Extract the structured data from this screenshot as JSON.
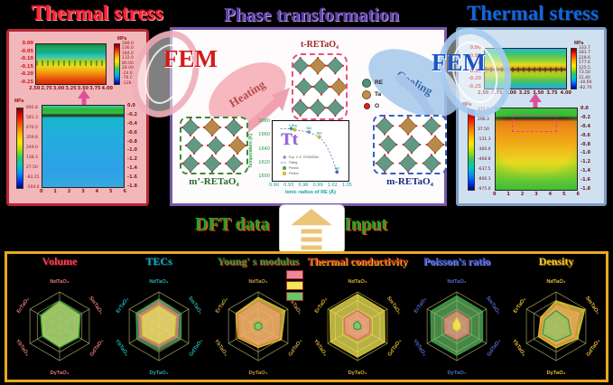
{
  "left_panel": {
    "title": "Thermal stress",
    "accent": "#e02030"
  },
  "right_panel": {
    "title": "Thermal stress",
    "accent": "#1565d8"
  },
  "center_panel": {
    "title": "Phase transformation",
    "fem_left": "FEM",
    "fem_right": "FEM",
    "heating": "Heating",
    "cooling": "Cooling",
    "t_label": "t-RETaO₄",
    "m_prime_label": "m’-RETaO₄",
    "m_label": "m-RETaO₄",
    "legend": [
      {
        "label": "RE",
        "color": "#4e8f7e"
      },
      {
        "label": "Ta",
        "color": "#c09040"
      },
      {
        "label": "O",
        "color": "#e02020"
      }
    ]
  },
  "middle": {
    "dft_label": "DFT data",
    "input_label": "Input"
  },
  "radar_axis_labels": [
    "NdTaO₄",
    "SmTaO₄",
    "GdTaO₄",
    "DyTaO₄",
    "YbTaO₄",
    "ErTaO₄"
  ],
  "chart_data": [
    {
      "name": "stress-contour-top-left",
      "type": "heatmap",
      "xticks": [
        "2.50",
        "2.75",
        "3.00",
        "3.25",
        "3.50",
        "3.75",
        "4.00"
      ],
      "yticks": [
        "0.00",
        "-0.05",
        "-0.10",
        "-0.15",
        "-0.20",
        "-0.25"
      ],
      "colorbar_unit": "MPa",
      "colorbar_ticks": [
        "288.0",
        "236.0",
        "184.0",
        "132.0",
        "80.00",
        "28.00",
        "-24.00",
        "-76.00",
        "-128.0"
      ]
    },
    {
      "name": "stress-contour-bottom-left",
      "type": "heatmap",
      "xticks": [
        "0",
        "1",
        "2",
        "3",
        "4",
        "5",
        "6"
      ],
      "yticks_right": [
        "0.0",
        "-0.2",
        "-0.4",
        "-0.6",
        "-0.8",
        "-1.0",
        "-1.2",
        "-1.4",
        "-1.6",
        "-1.8"
      ],
      "colorbar_unit": "MPa",
      "colorbar_ticks": [
        "692.8",
        "581.3",
        "470.5",
        "359.8",
        "249.0",
        "138.3",
        "27.50",
        "-83.25",
        "-194.0"
      ]
    },
    {
      "name": "stress-contour-top-right",
      "type": "heatmap",
      "xticks": [
        "2.50",
        "2.75",
        "3.00",
        "3.25",
        "3.50",
        "3.75",
        "4.00"
      ],
      "yticks": [
        "0.00",
        "-0.05",
        "-0.10",
        "-0.15",
        "-0.20",
        "-0.25"
      ],
      "colorbar_unit": "MPa",
      "colorbar_ticks": [
        "333.7",
        "281.7",
        "229.6",
        "177.6",
        "125.5",
        "73.50",
        "21.40",
        "-30.60",
        "-82.70"
      ]
    },
    {
      "name": "stress-contour-bottom-right",
      "type": "heatmap",
      "xticks": [
        "0",
        "1",
        "2",
        "3",
        "4",
        "5",
        "6"
      ],
      "yticks_right": [
        "0.0",
        "-0.2",
        "-0.4",
        "-0.6",
        "-0.8",
        "-1.0",
        "-1.2",
        "-1.4",
        "-1.6",
        "-1.8"
      ],
      "colorbar_unit": "MPa",
      "colorbar_ticks": [
        "375.0",
        "206.3",
        "37.50",
        "-131.3",
        "-300.0",
        "-468.8",
        "-637.5",
        "-806.3",
        "-975.0"
      ]
    },
    {
      "name": "tt-scatter",
      "type": "scatter",
      "title": "Tt",
      "ylabel": "Temperature (K)",
      "xlabel": "Ionic radius of RE (Å)",
      "yticks": [
        "1680",
        "1660",
        "1640",
        "1620",
        "1600"
      ],
      "xticks": [
        "0.90",
        "0.93",
        "0.96",
        "0.99",
        "1.02",
        "1.05"
      ],
      "xlim": [
        0.88,
        1.07
      ],
      "ylim": [
        1595,
        1685
      ],
      "points": [
        {
          "label": "Lu",
          "x": 0.92,
          "y": 1678
        },
        {
          "label": "Yb",
          "x": 0.93,
          "y": 1676
        },
        {
          "label": "Gd",
          "x": 0.97,
          "y": 1672
        },
        {
          "label": "Sm",
          "x": 1.0,
          "y": 1663
        },
        {
          "label": "Nd",
          "x": 1.05,
          "y": 1601
        }
      ],
      "legend": [
        "Exp. V. S. STUBIČAN",
        "Fitting",
        "Predict",
        "Predict"
      ]
    },
    {
      "name": "radar-volume",
      "type": "radar",
      "title": "Volume",
      "title_color": "#ee4456",
      "title_shadow": "#7a1020",
      "label_color": "#e87878",
      "categories": [
        "NdTaO₄",
        "SmTaO₄",
        "GdTaO₄",
        "DyTaO₄",
        "YbTaO₄",
        "ErTaO₄"
      ],
      "series": [
        {
          "name": "salmon",
          "fill": "rgba(244,150,160,0.6)",
          "stroke": "#e06878",
          "values": [
            0.66,
            0.62,
            0.58,
            0.56,
            0.52,
            0.57
          ]
        },
        {
          "name": "yellow",
          "fill": "rgba(245,235,90,0.6)",
          "stroke": "#d8c020",
          "values": [
            0.7,
            0.66,
            0.61,
            0.59,
            0.55,
            0.6
          ]
        },
        {
          "name": "green",
          "fill": "rgba(110,205,110,0.55)",
          "stroke": "#2e9e40",
          "values": [
            0.74,
            0.7,
            0.65,
            0.62,
            0.58,
            0.64
          ]
        }
      ]
    },
    {
      "name": "radar-tecs",
      "type": "radar",
      "title": "TECs",
      "title_color": "#18aac0",
      "title_shadow": "#0a4858",
      "label_color": "#28b0b0",
      "categories": [
        "NdTaO₄",
        "SmTaO₄",
        "GdTaO₄",
        "DyTaO₄",
        "YbTaO₄",
        "ErTaO₄"
      ],
      "series": [
        {
          "name": "green",
          "fill": "rgba(110,205,110,0.6)",
          "stroke": "#2e9e40",
          "values": [
            0.8,
            0.75,
            0.72,
            0.7,
            0.73,
            0.77
          ]
        },
        {
          "name": "salmon",
          "fill": "rgba(244,150,160,0.6)",
          "stroke": "#e06878",
          "values": [
            0.71,
            0.67,
            0.63,
            0.61,
            0.65,
            0.69
          ]
        },
        {
          "name": "yellow",
          "fill": "rgba(245,235,90,0.65)",
          "stroke": "#d8c020",
          "values": [
            0.6,
            0.57,
            0.53,
            0.51,
            0.55,
            0.58
          ]
        }
      ]
    },
    {
      "name": "radar-youngs",
      "type": "radar",
      "title": "Young' s modulus",
      "title_color": "#2f9e38",
      "title_shadow": "#d83020",
      "label_color": "#c8a040",
      "legend_colors": [
        "#ee8898",
        "#f2e858",
        "#67c767"
      ],
      "categories": [
        "NdTaO₄",
        "SmTaO₄",
        "GdTaO₄",
        "DyTaO₄",
        "YbTaO₄",
        "ErTaO₄"
      ],
      "series": [
        {
          "name": "yellow",
          "fill": "rgba(245,235,90,0.7)",
          "stroke": "#d8c020",
          "values": [
            0.84,
            0.9,
            0.78,
            0.62,
            0.68,
            0.75
          ]
        },
        {
          "name": "salmon",
          "fill": "rgba(242,160,110,0.7)",
          "stroke": "#e07848",
          "values": [
            0.74,
            0.76,
            0.72,
            0.58,
            0.64,
            0.7
          ]
        },
        {
          "name": "green",
          "fill": "rgba(110,205,110,0.7)",
          "stroke": "#2e9e40",
          "values": [
            0.12,
            0.12,
            0.12,
            0.12,
            0.12,
            0.12
          ]
        }
      ]
    },
    {
      "name": "radar-thermal-conductivity",
      "type": "radar",
      "title": "Thermal conductivity",
      "title_color": "#e03020",
      "title_shadow": "#e8d020",
      "label_color": "#d8b030",
      "categories": [
        "NdTaO₄",
        "SmTaO₄",
        "GdTaO₄",
        "DyTaO₄",
        "YbTaO₄",
        "ErTaO₄"
      ],
      "series": [
        {
          "name": "yellow",
          "fill": "rgba(245,235,90,0.75)",
          "stroke": "#d8c020",
          "values": [
            0.93,
            0.91,
            0.92,
            0.9,
            0.91,
            0.93
          ]
        },
        {
          "name": "salmon",
          "fill": "rgba(244,150,140,0.7)",
          "stroke": "#e06858",
          "values": [
            0.46,
            0.42,
            0.41,
            0.4,
            0.42,
            0.45
          ]
        },
        {
          "name": "green",
          "fill": "rgba(110,205,110,0.8)",
          "stroke": "#2e9e40",
          "values": [
            0.15,
            0.1,
            0.12,
            0.1,
            0.12,
            0.13
          ]
        }
      ]
    },
    {
      "name": "radar-poisson",
      "type": "radar",
      "title": "Poisson's ratio",
      "title_color": "#4054d4",
      "title_shadow": "#8090e0",
      "label_color": "#5868d0",
      "categories": [
        "NdTaO₄",
        "SmTaO₄",
        "GdTaO₄",
        "DyTaO₄",
        "YbTaO₄",
        "ErTaO₄"
      ],
      "series": [
        {
          "name": "green",
          "fill": "rgba(110,205,110,0.65)",
          "stroke": "#2e9e40",
          "values": [
            0.89,
            0.87,
            0.87,
            0.85,
            0.86,
            0.88
          ]
        },
        {
          "name": "salmon",
          "fill": "rgba(244,150,140,0.7)",
          "stroke": "#e06858",
          "values": [
            0.44,
            0.41,
            0.41,
            0.39,
            0.41,
            0.43
          ]
        },
        {
          "name": "yellow",
          "fill": "rgba(245,235,90,0.85)",
          "stroke": "#d8c020",
          "values": [
            0.26,
            0.13,
            0.13,
            0.15,
            0.13,
            0.14
          ]
        }
      ]
    },
    {
      "name": "radar-density",
      "type": "radar",
      "title": "Density",
      "title_color": "#f0c820",
      "title_shadow": "#a07010",
      "label_color": "#e8c030",
      "categories": [
        "NdTaO₄",
        "SmTaO₄",
        "GdTaO₄",
        "DyTaO₄",
        "YbTaO₄",
        "ErTaO₄"
      ],
      "series": [
        {
          "name": "yellow",
          "fill": "rgba(245,235,90,0.7)",
          "stroke": "#d8c020",
          "values": [
            0.74,
            0.96,
            0.72,
            0.63,
            0.6,
            0.52
          ]
        },
        {
          "name": "orange",
          "fill": "rgba(240,170,90,0.7)",
          "stroke": "#e08838",
          "values": [
            0.64,
            0.8,
            0.64,
            0.56,
            0.54,
            0.46
          ]
        },
        {
          "name": "green",
          "fill": "rgba(110,205,110,0.5)",
          "stroke": "#2e9e40",
          "values": [
            0.46,
            0.4,
            0.5,
            0.44,
            0.46,
            0.38
          ]
        }
      ]
    }
  ]
}
